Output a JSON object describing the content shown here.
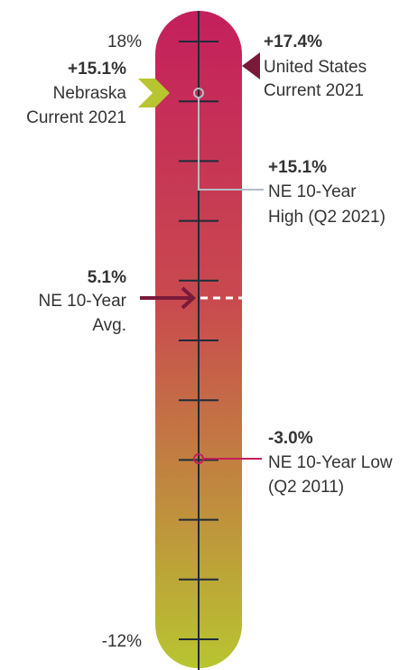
{
  "chart_data": {
    "type": "gauge",
    "scale": {
      "min": -12,
      "max": 18,
      "tick_step": 3,
      "unit": "%"
    },
    "axis_labels": {
      "top": "18%",
      "bottom": "-12%"
    },
    "colors": {
      "top": "#c41f5c",
      "bottom": "#b8c530",
      "tick": "#1d2b3a",
      "us_marker": "#7a1a3a",
      "ne_marker": "#b8c530",
      "avg_arrow": "#7a1a3a",
      "high_line": "#b5bcc5",
      "low_line": "#c41f5c"
    },
    "annotations": [
      {
        "id": "us",
        "value": 17.4,
        "value_label": "+17.4%",
        "lines": [
          "United States",
          "Current 2021"
        ],
        "side": "right",
        "marker": "chevron"
      },
      {
        "id": "ne-current",
        "value": 15.1,
        "value_label": "+15.1%",
        "lines": [
          "Nebraska",
          "Current 2021"
        ],
        "side": "left",
        "marker": "chevron"
      },
      {
        "id": "ne-high",
        "value": 15.1,
        "value_label": "+15.1%",
        "lines": [
          "NE 10-Year",
          "High (Q2 2021)"
        ],
        "side": "right",
        "marker": "circle-leader"
      },
      {
        "id": "ne-avg",
        "value": 5.1,
        "value_label": "5.1%",
        "lines": [
          "NE 10-Year",
          "Avg."
        ],
        "side": "left",
        "marker": "arrow-dashed"
      },
      {
        "id": "ne-low",
        "value": -3.0,
        "value_label": "-3.0%",
        "lines": [
          "NE 10-Year Low",
          "(Q2 2011)"
        ],
        "side": "right",
        "marker": "circle-leader"
      }
    ]
  }
}
